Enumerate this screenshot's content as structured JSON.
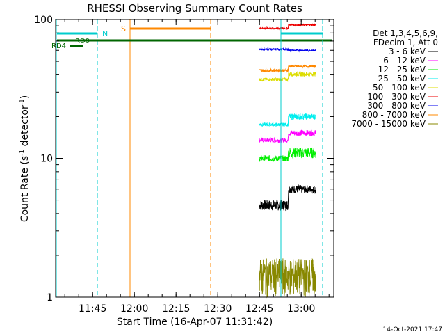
{
  "chart_data": {
    "type": "line",
    "title": "RHESSI Observing Summary Count Rates",
    "xlabel": "Start Time (16-Apr-07 11:31:42)",
    "ylabel_main": "Count Rate (s",
    "ylabel_sup1": "-1",
    "ylabel_mid": " detector",
    "ylabel_sup2": "-1",
    "ylabel_end": ")",
    "yscale": "log",
    "ylim": [
      1,
      100
    ],
    "xlim_minutes": [
      0,
      100
    ],
    "x_ticks": [
      {
        "label": "11:45",
        "min": 13.3
      },
      {
        "label": "12:00",
        "min": 28.3
      },
      {
        "label": "12:15",
        "min": 43.3
      },
      {
        "label": "12:30",
        "min": 58.3
      },
      {
        "label": "12:45",
        "min": 73.3
      },
      {
        "label": "13:00",
        "min": 88.3
      }
    ],
    "y_ticks": [
      {
        "label": "1",
        "value": 1
      },
      {
        "label": "10",
        "value": 10
      },
      {
        "label": "100",
        "value": 100
      }
    ],
    "legend_header": [
      "Det 1,3,4,5,6,9,",
      "FDecim 1, Att 0"
    ],
    "series": [
      {
        "name": "3 - 6 keV",
        "color": "#000000",
        "values_early": [
          4.2,
          5.0
        ],
        "values_late": [
          5.6,
          6.4
        ]
      },
      {
        "name": "6 - 12 keV",
        "color": "#ff00ff",
        "values_early": [
          13.0,
          14.0
        ],
        "values_late": [
          14.5,
          16.0
        ]
      },
      {
        "name": "12 - 25 keV",
        "color": "#00ee00",
        "values_early": [
          9.5,
          10.5
        ],
        "values_late": [
          10.0,
          12.0
        ]
      },
      {
        "name": "25 - 50 keV",
        "color": "#00eeee",
        "values_early": [
          17.0,
          18.0
        ],
        "values_late": [
          19.0,
          21.0
        ]
      },
      {
        "name": "50 - 100 keV",
        "color": "#dddd00",
        "values_early": [
          36.0,
          38.0
        ],
        "values_late": [
          39.0,
          42.0
        ]
      },
      {
        "name": "100 - 300 keV",
        "color": "#ee0000",
        "values_early": [
          85.0,
          88.0
        ],
        "values_late": [
          90.0,
          93.0
        ]
      },
      {
        "name": "300 - 800 keV",
        "color": "#0000ee",
        "values_early": [
          60.0,
          62.0
        ],
        "values_late": [
          59.0,
          61.0
        ]
      },
      {
        "name": "800 - 7000 keV",
        "color": "#ff8800",
        "values_early": [
          42.0,
          44.0
        ],
        "values_late": [
          45.0,
          47.0
        ]
      },
      {
        "name": "7000 - 15000 keV",
        "color": "#888800",
        "values_early": [
          1.0,
          1.9
        ],
        "values_late": [
          1.0,
          1.9
        ]
      }
    ],
    "data_window_minutes": [
      73.3,
      93.5
    ],
    "annotations": [
      {
        "label": "N",
        "color": "#00cccc"
      },
      {
        "label": "S",
        "color": "#ff8800"
      },
      {
        "label": "RD0",
        "color": "#006600"
      },
      {
        "label": "RD4",
        "color": "#006600"
      }
    ],
    "timestamp": "14-Oct-2021 17:47"
  }
}
